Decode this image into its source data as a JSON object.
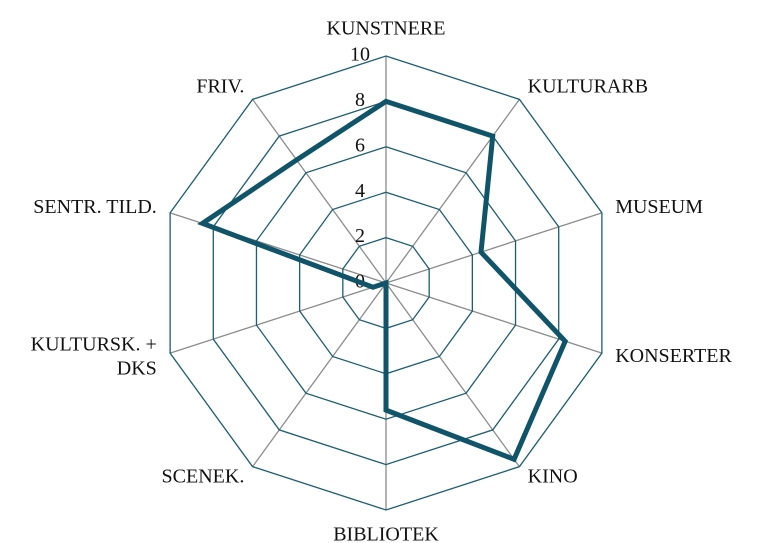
{
  "chart_data": {
    "type": "radar",
    "categories": [
      "KUNSTNERE",
      "KULTURARB",
      "MUSEUM",
      "KONSERTER",
      "KINO",
      "BIBLIOTEK",
      "SCENEK.",
      "KULTURSK. +\nDKS",
      "SENTR. TILD.",
      "FRIV."
    ],
    "series": [
      {
        "color": "#0f5468",
        "values": [
          8,
          8,
          4.4,
          8.3,
          9.6,
          5.6,
          0,
          0.6,
          8.5,
          6.7
        ]
      }
    ],
    "rlim": [
      0,
      10
    ],
    "rticks": [
      0,
      2,
      4,
      6,
      8,
      10
    ],
    "grid": true
  }
}
